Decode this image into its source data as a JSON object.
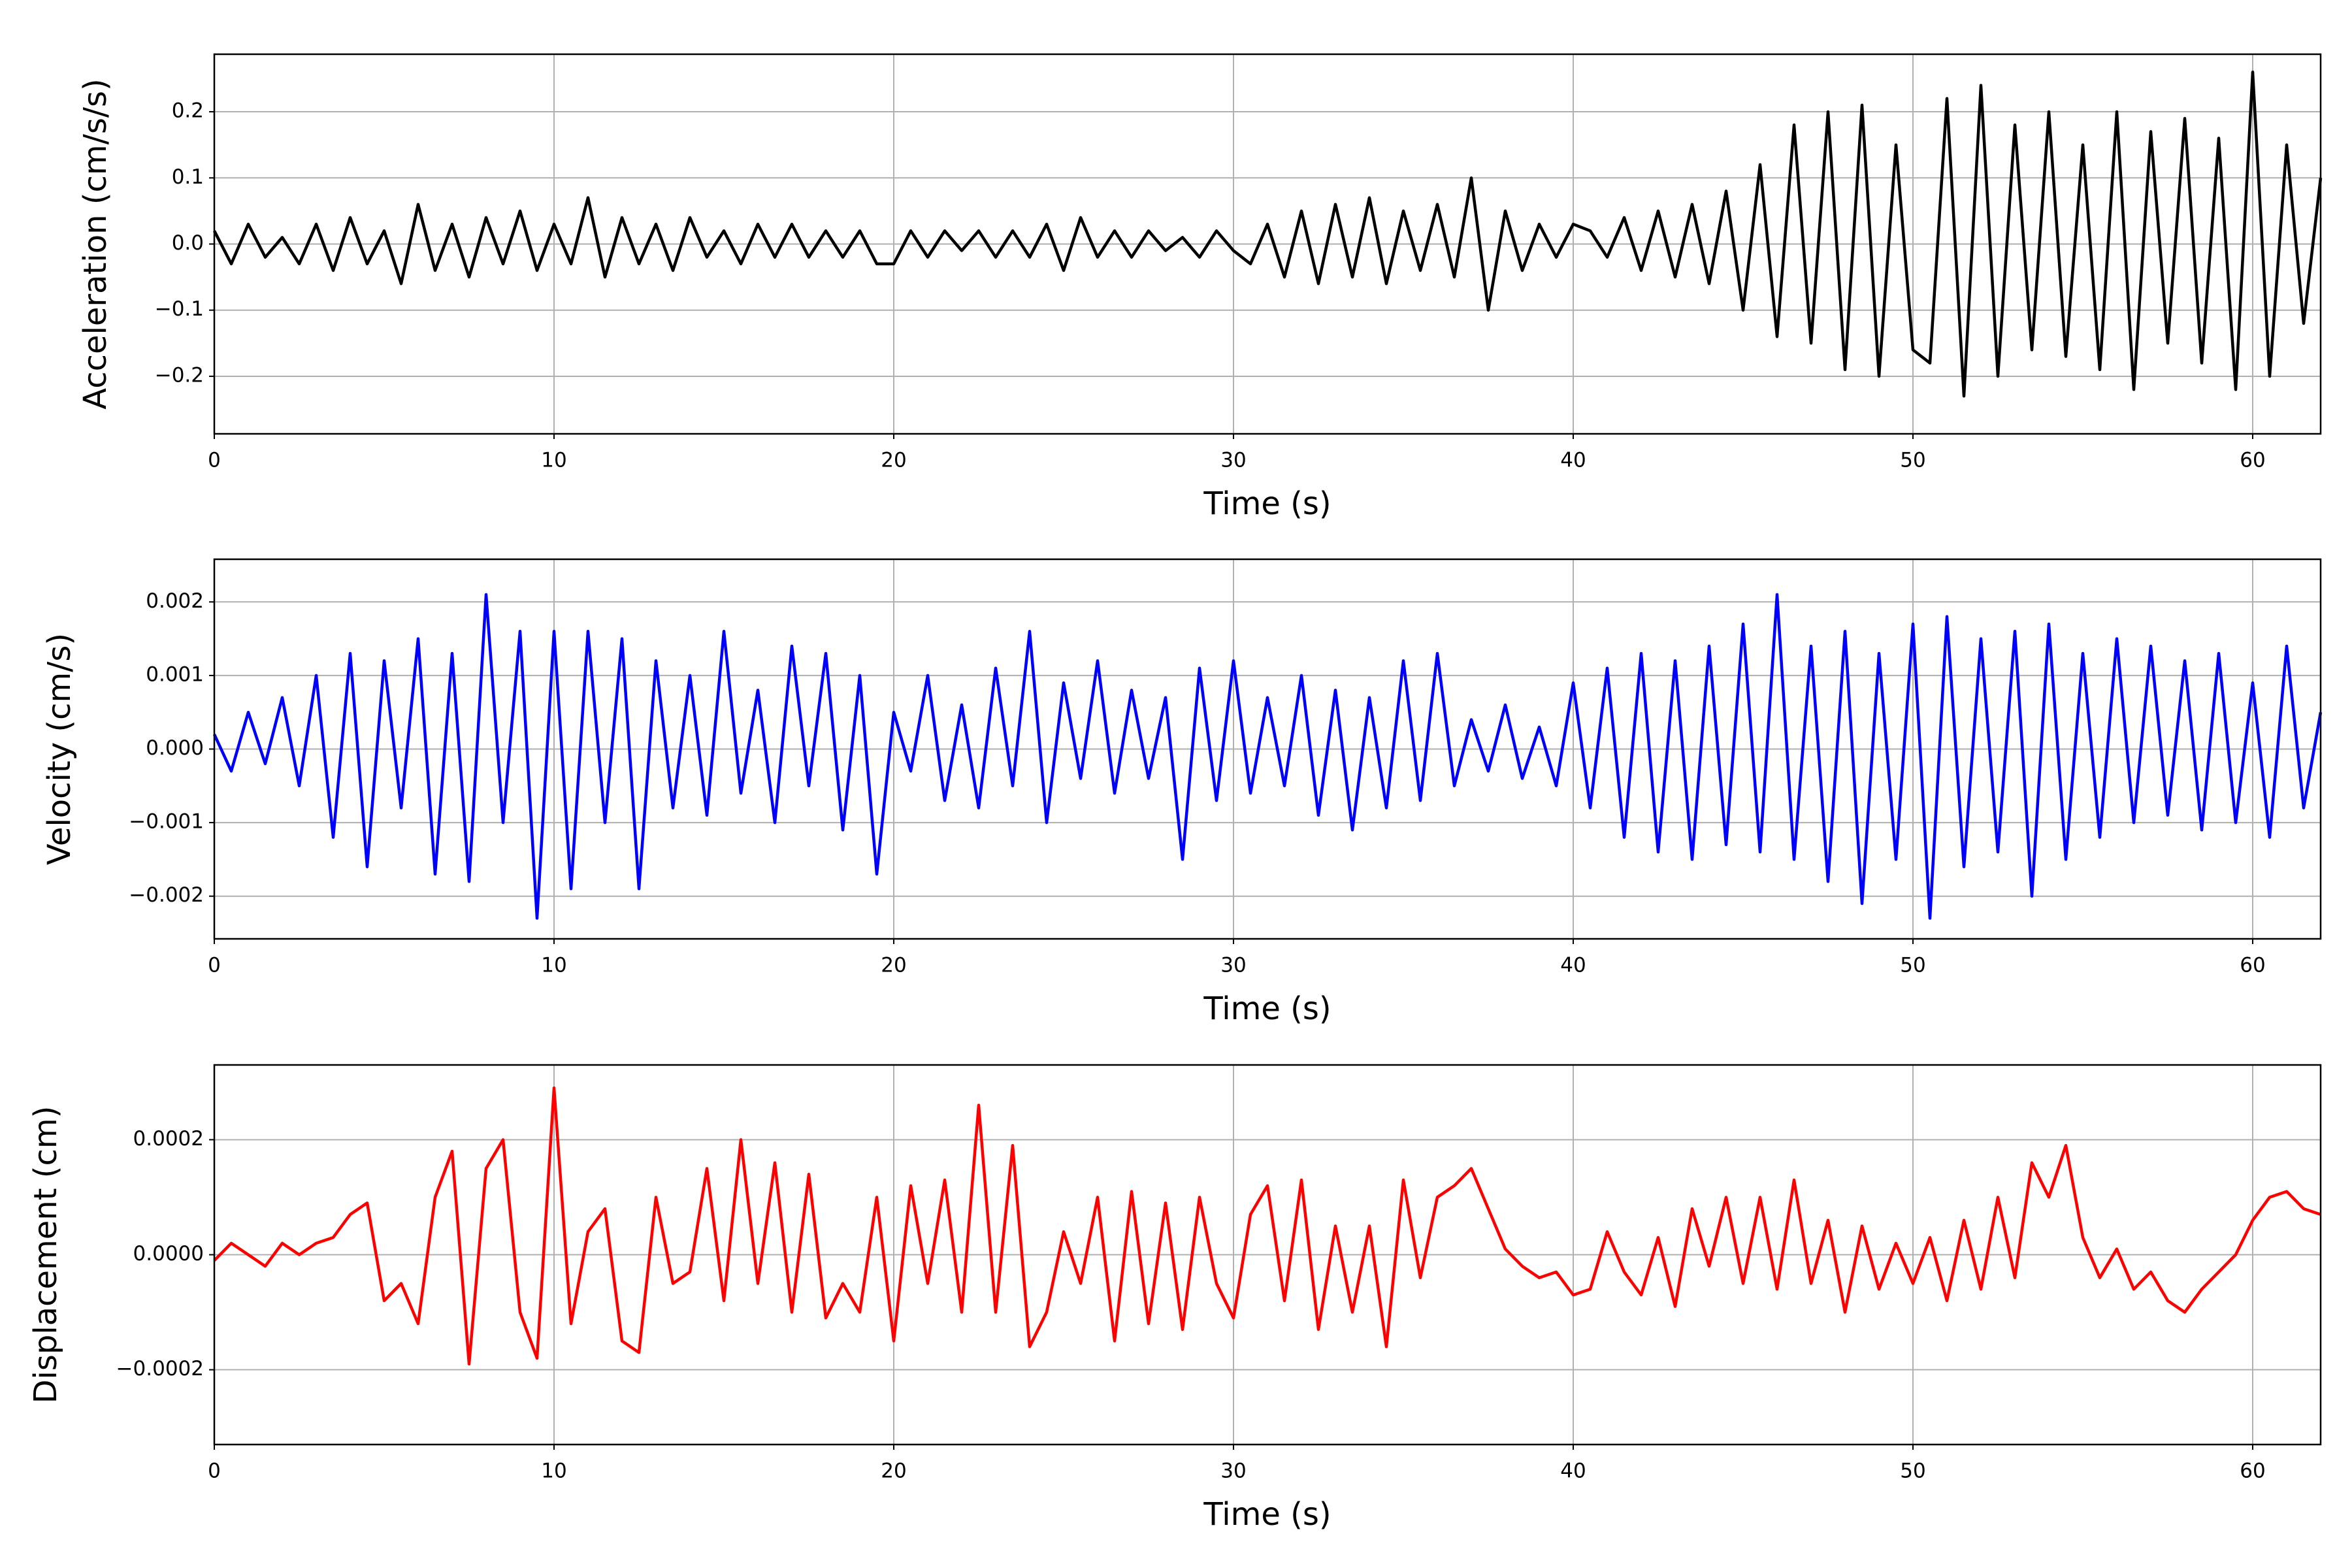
{
  "chart_data": [
    {
      "type": "line",
      "xlabel": "Time (s)",
      "ylabel": "Acceleration (cm/s/s)",
      "color": "#000000",
      "grid": true,
      "xlim": [
        0,
        62
      ],
      "xticks": [
        0,
        10,
        20,
        30,
        40,
        50,
        60
      ],
      "ylim": [
        -0.287,
        0.287
      ],
      "yticks": [
        {
          "value": -0.2,
          "label": "−0.2"
        },
        {
          "value": -0.1,
          "label": "−0.1"
        },
        {
          "value": 0,
          "label": "0.0"
        },
        0.1,
        0.2
      ],
      "x": [
        0,
        0.5,
        1,
        1.5,
        2,
        2.5,
        3,
        3.5,
        4,
        4.5,
        5,
        5.5,
        6,
        6.5,
        7,
        7.5,
        8,
        8.5,
        9,
        9.5,
        10,
        10.5,
        11,
        11.5,
        12,
        12.5,
        13,
        13.5,
        14,
        14.5,
        15,
        15.5,
        16,
        16.5,
        17,
        17.5,
        18,
        18.5,
        19,
        19.5,
        20,
        20.5,
        21,
        21.5,
        22,
        22.5,
        23,
        23.5,
        24,
        24.5,
        25,
        25.5,
        26,
        26.5,
        27,
        27.5,
        28,
        28.5,
        29,
        29.5,
        30,
        30.5,
        31,
        31.5,
        32,
        32.5,
        33,
        33.5,
        34,
        34.5,
        35,
        35.5,
        36,
        36.5,
        37,
        37.5,
        38,
        38.5,
        39,
        39.5,
        40,
        40.5,
        41,
        41.5,
        42,
        42.5,
        43,
        43.5,
        44,
        44.5,
        45,
        45.5,
        46,
        46.5,
        47,
        47.5,
        48,
        48.5,
        49,
        49.5,
        50,
        50.5,
        51,
        51.5,
        52,
        52.5,
        53,
        53.5,
        54,
        54.5,
        55,
        55.5,
        56,
        56.5,
        57,
        57.5,
        58,
        58.5,
        59,
        59.5,
        60,
        60.5,
        61,
        61.5,
        62
      ],
      "values": [
        0.02,
        -0.03,
        0.03,
        -0.02,
        0.01,
        -0.03,
        0.03,
        -0.04,
        0.04,
        -0.03,
        0.02,
        -0.06,
        0.06,
        -0.04,
        0.03,
        -0.05,
        0.04,
        -0.03,
        0.05,
        -0.04,
        0.03,
        -0.03,
        0.07,
        -0.05,
        0.04,
        -0.03,
        0.03,
        -0.04,
        0.04,
        -0.02,
        0.02,
        -0.03,
        0.03,
        -0.02,
        0.03,
        -0.02,
        0.02,
        -0.02,
        0.02,
        -0.03,
        -0.03,
        0.02,
        -0.02,
        0.02,
        -0.01,
        0.02,
        -0.02,
        0.02,
        -0.02,
        0.03,
        -0.04,
        0.04,
        -0.02,
        0.02,
        -0.02,
        0.02,
        -0.01,
        0.01,
        -0.02,
        0.02,
        -0.01,
        -0.03,
        0.03,
        -0.05,
        0.05,
        -0.06,
        0.06,
        -0.05,
        0.07,
        -0.06,
        0.05,
        -0.04,
        0.06,
        -0.05,
        0.1,
        -0.1,
        0.05,
        -0.04,
        0.03,
        -0.02,
        0.03,
        0.02,
        -0.02,
        0.04,
        -0.04,
        0.05,
        -0.05,
        0.06,
        -0.06,
        0.08,
        -0.1,
        0.12,
        -0.14,
        0.18,
        -0.15,
        0.2,
        -0.19,
        0.21,
        -0.2,
        0.15,
        -0.16,
        -0.18,
        0.22,
        -0.23,
        0.24,
        -0.2,
        0.18,
        -0.16,
        0.2,
        -0.17,
        0.15,
        -0.19,
        0.2,
        -0.22,
        0.17,
        -0.15,
        0.19,
        -0.18,
        0.16,
        -0.22,
        0.26,
        -0.2,
        0.15,
        -0.12,
        0.1
      ]
    },
    {
      "type": "line",
      "xlabel": "Time (s)",
      "ylabel": "Velocity (cm/s)",
      "color": "#0000ff",
      "grid": true,
      "xlim": [
        0,
        62
      ],
      "xticks": [
        0,
        10,
        20,
        30,
        40,
        50,
        60
      ],
      "ylim": [
        -0.00258,
        0.00258
      ],
      "yticks": [
        {
          "value": -0.002,
          "label": "−0.002"
        },
        {
          "value": -0.001,
          "label": "−0.001"
        },
        {
          "value": 0,
          "label": "0.000"
        },
        0.001,
        0.002
      ],
      "x": [
        0,
        0.5,
        1,
        1.5,
        2,
        2.5,
        3,
        3.5,
        4,
        4.5,
        5,
        5.5,
        6,
        6.5,
        7,
        7.5,
        8,
        8.5,
        9,
        9.5,
        10,
        10.5,
        11,
        11.5,
        12,
        12.5,
        13,
        13.5,
        14,
        14.5,
        15,
        15.5,
        16,
        16.5,
        17,
        17.5,
        18,
        18.5,
        19,
        19.5,
        20,
        20.5,
        21,
        21.5,
        22,
        22.5,
        23,
        23.5,
        24,
        24.5,
        25,
        25.5,
        26,
        26.5,
        27,
        27.5,
        28,
        28.5,
        29,
        29.5,
        30,
        30.5,
        31,
        31.5,
        32,
        32.5,
        33,
        33.5,
        34,
        34.5,
        35,
        35.5,
        36,
        36.5,
        37,
        37.5,
        38,
        38.5,
        39,
        39.5,
        40,
        40.5,
        41,
        41.5,
        42,
        42.5,
        43,
        43.5,
        44,
        44.5,
        45,
        45.5,
        46,
        46.5,
        47,
        47.5,
        48,
        48.5,
        49,
        49.5,
        50,
        50.5,
        51,
        51.5,
        52,
        52.5,
        53,
        53.5,
        54,
        54.5,
        55,
        55.5,
        56,
        56.5,
        57,
        57.5,
        58,
        58.5,
        59,
        59.5,
        60,
        60.5,
        61,
        61.5,
        62
      ],
      "values": [
        0.0002,
        -0.0003,
        0.0005,
        -0.0002,
        0.0007,
        -0.0005,
        0.001,
        -0.0012,
        0.0013,
        -0.0016,
        0.0012,
        -0.0008,
        0.0015,
        -0.0017,
        0.0013,
        -0.0018,
        0.0021,
        -0.001,
        0.0016,
        -0.0023,
        0.0016,
        -0.0019,
        0.0016,
        -0.001,
        0.0015,
        -0.0019,
        0.0012,
        -0.0008,
        0.001,
        -0.0009,
        0.0016,
        -0.0006,
        0.0008,
        -0.001,
        0.0014,
        -0.0005,
        0.0013,
        -0.0011,
        0.001,
        -0.0017,
        0.0005,
        -0.0003,
        0.001,
        -0.0007,
        0.0006,
        -0.0008,
        0.0011,
        -0.0005,
        0.0016,
        -0.001,
        0.0009,
        -0.0004,
        0.0012,
        -0.0006,
        0.0008,
        -0.0004,
        0.0007,
        -0.0015,
        0.0011,
        -0.0007,
        0.0012,
        -0.0006,
        0.0007,
        -0.0005,
        0.001,
        -0.0009,
        0.0008,
        -0.0011,
        0.0007,
        -0.0008,
        0.0012,
        -0.0007,
        0.0013,
        -0.0005,
        0.0004,
        -0.0003,
        0.0006,
        -0.0004,
        0.0003,
        -0.0005,
        0.0009,
        -0.0008,
        0.0011,
        -0.0012,
        0.0013,
        -0.0014,
        0.0012,
        -0.0015,
        0.0014,
        -0.0013,
        0.0017,
        -0.0014,
        0.0021,
        -0.0015,
        0.0014,
        -0.0018,
        0.0016,
        -0.0021,
        0.0013,
        -0.0015,
        0.0017,
        -0.0023,
        0.0018,
        -0.0016,
        0.0015,
        -0.0014,
        0.0016,
        -0.002,
        0.0017,
        -0.0015,
        0.0013,
        -0.0012,
        0.0015,
        -0.001,
        0.0014,
        -0.0009,
        0.0012,
        -0.0011,
        0.0013,
        -0.001,
        0.0009,
        -0.0012,
        0.0014,
        -0.0008,
        0.0005
      ]
    },
    {
      "type": "line",
      "xlabel": "Time (s)",
      "ylabel": "Displacement (cm)",
      "color": "#ff0000",
      "grid": true,
      "xlim": [
        0,
        62
      ],
      "xticks": [
        0,
        10,
        20,
        30,
        40,
        50,
        60
      ],
      "ylim": [
        -0.00033,
        0.00033
      ],
      "yticks": [
        {
          "value": -0.0002,
          "label": "−0.0002"
        },
        {
          "value": 0,
          "label": "0.0000"
        },
        0.0002
      ],
      "x": [
        0,
        0.5,
        1,
        1.5,
        2,
        2.5,
        3,
        3.5,
        4,
        4.5,
        5,
        5.5,
        6,
        6.5,
        7,
        7.5,
        8,
        8.5,
        9,
        9.5,
        10,
        10.5,
        11,
        11.5,
        12,
        12.5,
        13,
        13.5,
        14,
        14.5,
        15,
        15.5,
        16,
        16.5,
        17,
        17.5,
        18,
        18.5,
        19,
        19.5,
        20,
        20.5,
        21,
        21.5,
        22,
        22.5,
        23,
        23.5,
        24,
        24.5,
        25,
        25.5,
        26,
        26.5,
        27,
        27.5,
        28,
        28.5,
        29,
        29.5,
        30,
        30.5,
        31,
        31.5,
        32,
        32.5,
        33,
        33.5,
        34,
        34.5,
        35,
        35.5,
        36,
        36.5,
        37,
        37.5,
        38,
        38.5,
        39,
        39.5,
        40,
        40.5,
        41,
        41.5,
        42,
        42.5,
        43,
        43.5,
        44,
        44.5,
        45,
        45.5,
        46,
        46.5,
        47,
        47.5,
        48,
        48.5,
        49,
        49.5,
        50,
        50.5,
        51,
        51.5,
        52,
        52.5,
        53,
        53.5,
        54,
        54.5,
        55,
        55.5,
        56,
        56.5,
        57,
        57.5,
        58,
        58.5,
        59,
        59.5,
        60,
        60.5,
        61,
        61.5,
        62
      ],
      "values": [
        -1e-05,
        2e-05,
        0.0,
        -2e-05,
        2e-05,
        0.0,
        2e-05,
        3e-05,
        7e-05,
        9e-05,
        -8e-05,
        -5e-05,
        -0.00012,
        0.0001,
        0.00018,
        -0.00019,
        0.00015,
        0.0002,
        -0.0001,
        -0.00018,
        0.00029,
        -0.00012,
        4e-05,
        8e-05,
        -0.00015,
        -0.00017,
        0.0001,
        -5e-05,
        -3e-05,
        0.00015,
        -8e-05,
        0.0002,
        -5e-05,
        0.00016,
        -0.0001,
        0.00014,
        -0.00011,
        -5e-05,
        -0.0001,
        0.0001,
        -0.00015,
        0.00012,
        -5e-05,
        0.00013,
        -0.0001,
        0.00026,
        -0.0001,
        0.00019,
        -0.00016,
        -0.0001,
        4e-05,
        -5e-05,
        0.0001,
        -0.00015,
        0.00011,
        -0.00012,
        9e-05,
        -0.00013,
        0.0001,
        -5e-05,
        -0.00011,
        7e-05,
        0.00012,
        -8e-05,
        0.00013,
        -0.00013,
        5e-05,
        -0.0001,
        5e-05,
        -0.00016,
        0.00013,
        -4e-05,
        0.0001,
        0.00012,
        0.00015,
        8e-05,
        1e-05,
        -2e-05,
        -4e-05,
        -3e-05,
        -7e-05,
        -6e-05,
        4e-05,
        -3e-05,
        -7e-05,
        3e-05,
        -9e-05,
        8e-05,
        -2e-05,
        0.0001,
        -5e-05,
        0.0001,
        -6e-05,
        0.00013,
        -5e-05,
        6e-05,
        -0.0001,
        5e-05,
        -6e-05,
        2e-05,
        -5e-05,
        3e-05,
        -8e-05,
        6e-05,
        -6e-05,
        0.0001,
        -4e-05,
        0.00016,
        0.0001,
        0.00019,
        3e-05,
        -4e-05,
        1e-05,
        -6e-05,
        -3e-05,
        -8e-05,
        -0.0001,
        -6e-05,
        -3e-05,
        0.0,
        6e-05,
        0.0001,
        0.00011,
        8e-05,
        7e-05
      ]
    }
  ]
}
